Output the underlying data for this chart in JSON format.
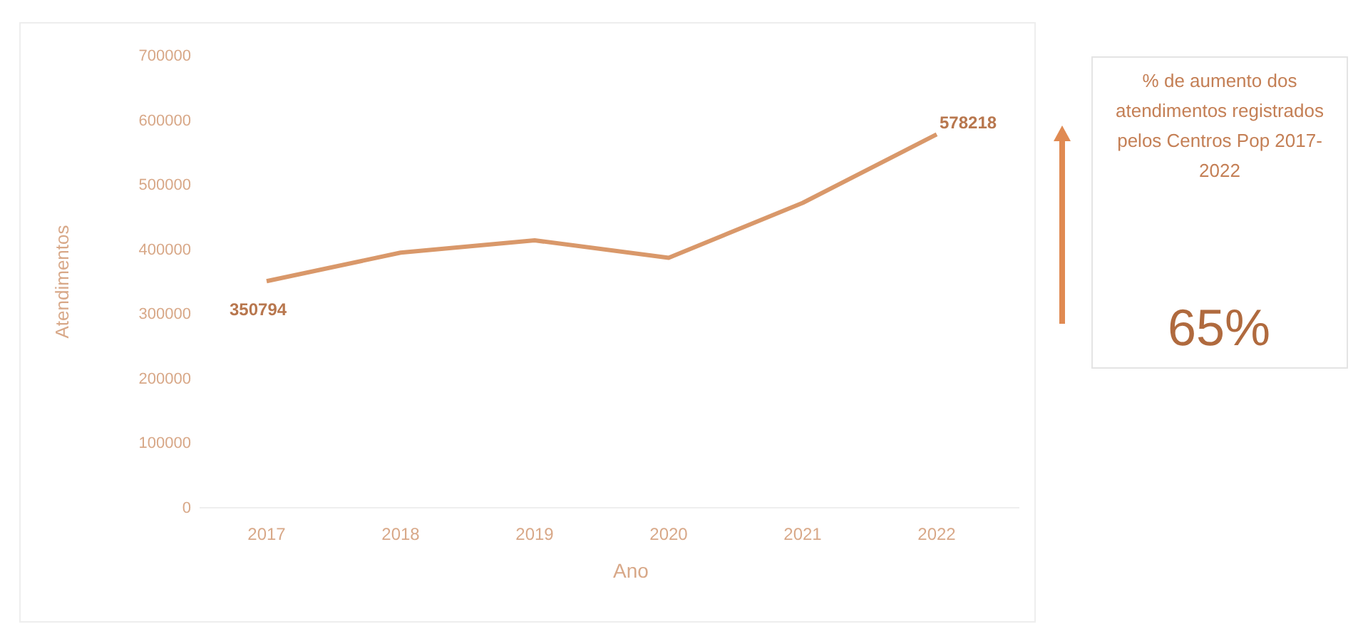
{
  "chart_data": {
    "type": "line",
    "xlabel": "Ano",
    "ylabel": "Atendimentos",
    "categories": [
      "2017",
      "2018",
      "2019",
      "2020",
      "2021",
      "2022"
    ],
    "series": [
      {
        "color": "#d9986a",
        "values": [
          350794,
          395000,
          414000,
          387000,
          472000,
          578218
        ],
        "value_labels": [
          "350794",
          null,
          null,
          null,
          null,
          "578218"
        ]
      }
    ],
    "ylim": [
      0,
      700000
    ],
    "yticks": [
      0,
      100000,
      200000,
      300000,
      400000,
      500000,
      600000,
      700000
    ],
    "grid": false,
    "marker": "none",
    "line_style": "solid",
    "annotations": [
      "% de aumento dos atendimentos registrados pelos Centros Pop 2017-2022",
      "65%"
    ]
  }
}
